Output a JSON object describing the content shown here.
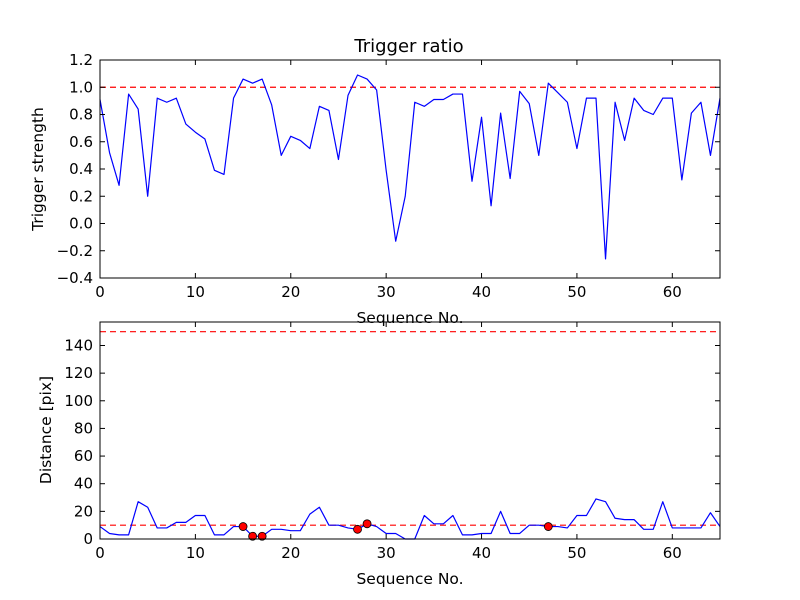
{
  "chart_data": [
    {
      "type": "line",
      "title": "Trigger ratio",
      "xlabel": "Sequence No.",
      "ylabel": "Trigger strength",
      "xlim": [
        0,
        65
      ],
      "ylim": [
        -0.4,
        1.2
      ],
      "xticks": [
        0,
        10,
        20,
        30,
        40,
        50,
        60
      ],
      "yticks": [
        -0.4,
        -0.2,
        0.0,
        0.2,
        0.4,
        0.6,
        0.8,
        1.0,
        1.2
      ],
      "ytick_labels": [
        "−0.4",
        "−0.2",
        "0.0",
        "0.2",
        "0.4",
        "0.6",
        "0.8",
        "1.0",
        "1.2"
      ],
      "grid": false,
      "colors": {
        "series": "#0000ff",
        "threshold": "#ff0000"
      },
      "threshold": 1.0,
      "series": [
        {
          "x": [
            0,
            1,
            2,
            3,
            4,
            5,
            6,
            7,
            8,
            9,
            10,
            11,
            12,
            13,
            14,
            15,
            16,
            17,
            18,
            19,
            20,
            21,
            22,
            23,
            24,
            25,
            26,
            27,
            28,
            29,
            30,
            31,
            32,
            33,
            34,
            35,
            36,
            37,
            38,
            39,
            40,
            41,
            42,
            43,
            44,
            45,
            46,
            47,
            48,
            49,
            50,
            51,
            52,
            53,
            54,
            55,
            56,
            57,
            58,
            59,
            60,
            61,
            62,
            63,
            64,
            65
          ],
          "values": [
            0.91,
            0.52,
            0.28,
            0.95,
            0.84,
            0.2,
            0.92,
            0.89,
            0.92,
            0.73,
            0.67,
            0.62,
            0.39,
            0.36,
            0.92,
            1.06,
            1.03,
            1.06,
            0.87,
            0.5,
            0.64,
            0.61,
            0.55,
            0.86,
            0.83,
            0.47,
            0.94,
            1.09,
            1.06,
            0.98,
            0.39,
            -0.13,
            0.2,
            0.89,
            0.86,
            0.91,
            0.91,
            0.95,
            0.95,
            0.31,
            0.78,
            0.13,
            0.81,
            0.33,
            0.97,
            0.88,
            0.5,
            1.03,
            0.96,
            0.89,
            0.55,
            0.92,
            0.92,
            -0.26,
            0.89,
            0.61,
            0.92,
            0.83,
            0.8,
            0.92,
            0.92,
            0.32,
            0.81,
            0.89,
            0.5,
            0.92
          ]
        }
      ]
    },
    {
      "type": "line",
      "title": "",
      "xlabel": "Sequence No.",
      "ylabel": "Distance [pix]",
      "xlim": [
        0,
        65
      ],
      "ylim": [
        0,
        157
      ],
      "xticks": [
        0,
        10,
        20,
        30,
        40,
        50,
        60
      ],
      "yticks": [
        0,
        20,
        40,
        60,
        80,
        100,
        120,
        140
      ],
      "ytick_labels": [
        "0",
        "20",
        "40",
        "60",
        "80",
        "100",
        "120",
        "140"
      ],
      "grid": false,
      "colors": {
        "series": "#0000ff",
        "threshold": "#ff0000",
        "marker": "#ff0000"
      },
      "thresholds": [
        10,
        150
      ],
      "series": [
        {
          "x": [
            0,
            1,
            2,
            3,
            4,
            5,
            6,
            7,
            8,
            9,
            10,
            11,
            12,
            13,
            14,
            15,
            16,
            17,
            18,
            19,
            20,
            21,
            22,
            23,
            24,
            25,
            26,
            27,
            28,
            29,
            30,
            31,
            32,
            33,
            34,
            35,
            36,
            37,
            38,
            39,
            40,
            41,
            42,
            43,
            44,
            45,
            46,
            47,
            48,
            49,
            50,
            51,
            52,
            53,
            54,
            55,
            56,
            57,
            58,
            59,
            60,
            61,
            62,
            63,
            64,
            65
          ],
          "values": [
            9,
            4,
            3,
            3,
            27,
            23,
            8,
            8,
            12,
            12,
            17,
            17,
            3,
            3,
            9,
            9,
            2,
            2,
            7,
            7,
            6,
            6,
            18,
            23,
            10,
            10,
            8,
            7,
            11,
            9,
            4,
            4,
            0,
            0,
            17,
            11,
            11,
            17,
            3,
            3,
            4,
            4,
            20,
            4,
            4,
            10,
            10,
            9,
            9,
            8,
            17,
            17,
            29,
            27,
            15,
            14,
            14,
            7,
            7,
            27,
            8,
            8,
            8,
            8,
            19,
            9
          ]
        }
      ],
      "markers": {
        "x": [
          15,
          16,
          17,
          27,
          28,
          47
        ],
        "values": [
          9,
          2,
          2,
          7,
          11,
          9
        ]
      }
    }
  ]
}
